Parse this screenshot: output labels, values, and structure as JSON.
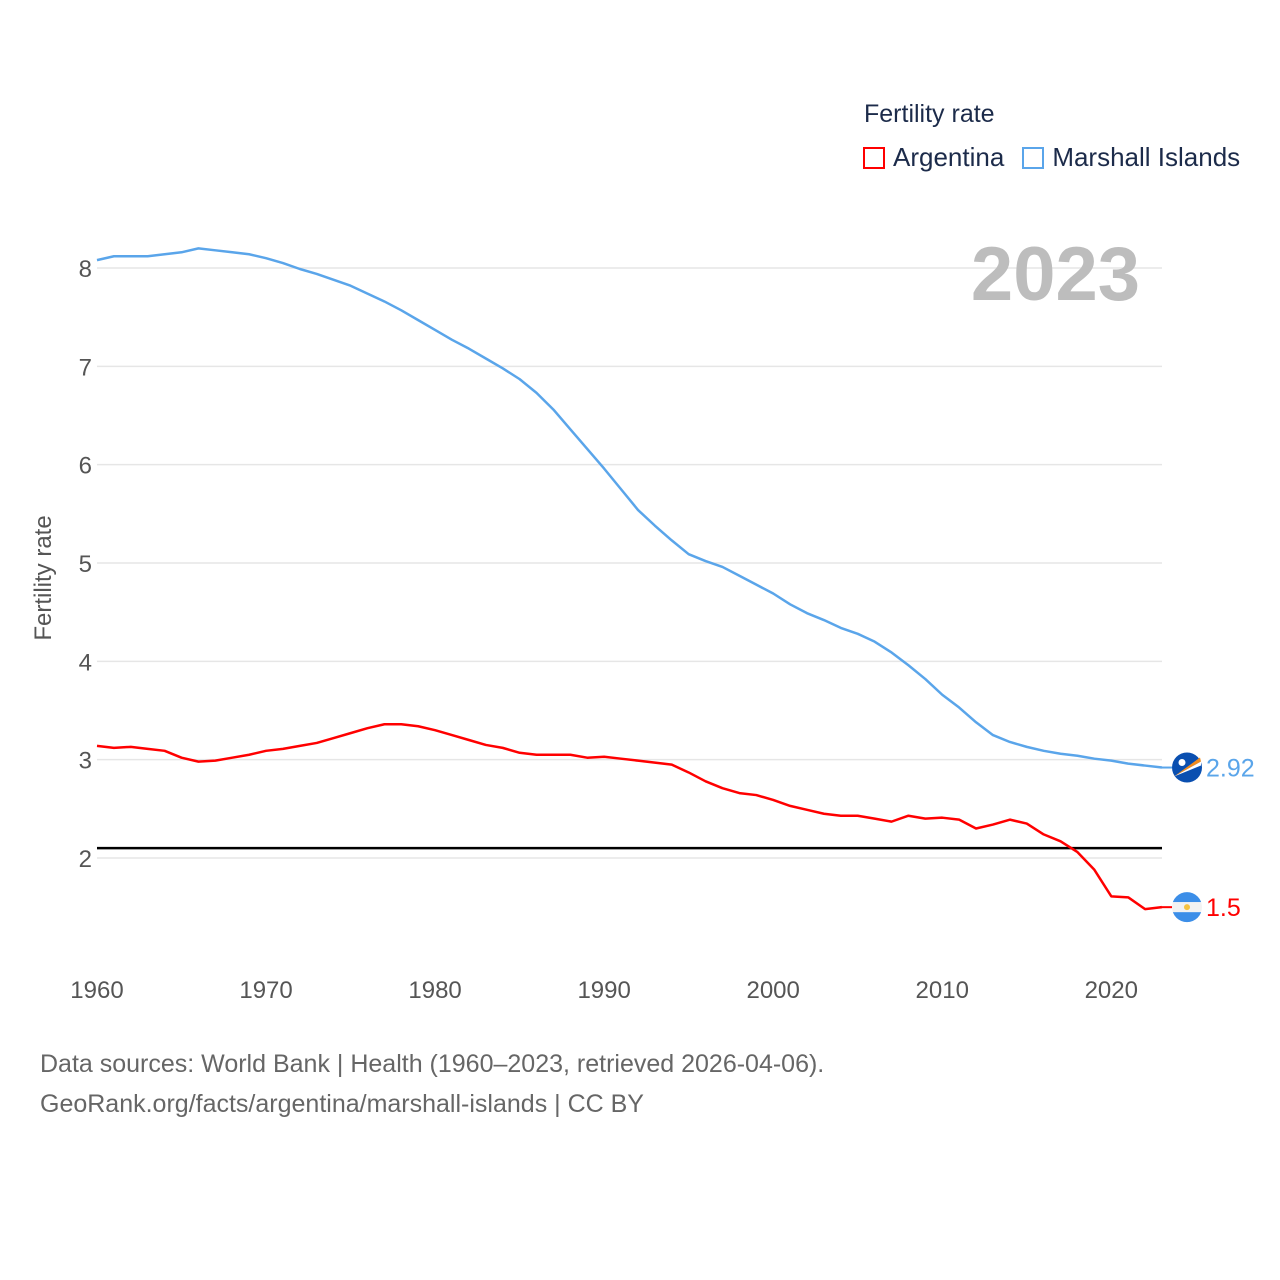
{
  "chart_data": {
    "type": "line",
    "title": "2023",
    "ylabel": "Fertility rate",
    "xlabel": "",
    "xlim": [
      1960,
      2023
    ],
    "ylim": [
      1.0,
      8.28
    ],
    "grid": true,
    "legend_title": "Fertility rate",
    "legend_placement": "top-right",
    "x_ticks": [
      1960,
      1970,
      1980,
      1990,
      2000,
      2010,
      2020
    ],
    "y_ticks": [
      2,
      3,
      4,
      5,
      6,
      7,
      8
    ],
    "reference_line": {
      "value": 2.1,
      "color": "#000000"
    },
    "x": [
      1960,
      1961,
      1962,
      1963,
      1964,
      1965,
      1966,
      1967,
      1968,
      1969,
      1970,
      1971,
      1972,
      1973,
      1974,
      1975,
      1976,
      1977,
      1978,
      1979,
      1980,
      1981,
      1982,
      1983,
      1984,
      1985,
      1986,
      1987,
      1988,
      1989,
      1990,
      1991,
      1992,
      1993,
      1994,
      1995,
      1996,
      1997,
      1998,
      1999,
      2000,
      2001,
      2002,
      2003,
      2004,
      2005,
      2006,
      2007,
      2008,
      2009,
      2010,
      2011,
      2012,
      2013,
      2014,
      2015,
      2016,
      2017,
      2018,
      2019,
      2020,
      2021,
      2022,
      2023
    ],
    "series": [
      {
        "name": "Argentina",
        "color": "#ff0000",
        "end_label": "1.5",
        "values": [
          3.14,
          3.12,
          3.13,
          3.11,
          3.09,
          3.02,
          2.98,
          2.99,
          3.02,
          3.05,
          3.09,
          3.11,
          3.14,
          3.17,
          3.22,
          3.27,
          3.32,
          3.36,
          3.36,
          3.34,
          3.3,
          3.25,
          3.2,
          3.15,
          3.12,
          3.07,
          3.05,
          3.05,
          3.05,
          3.02,
          3.03,
          3.01,
          2.99,
          2.97,
          2.95,
          2.87,
          2.78,
          2.71,
          2.66,
          2.64,
          2.59,
          2.53,
          2.49,
          2.45,
          2.43,
          2.43,
          2.4,
          2.37,
          2.43,
          2.4,
          2.41,
          2.39,
          2.3,
          2.34,
          2.39,
          2.35,
          2.24,
          2.17,
          2.06,
          1.88,
          1.61,
          1.6,
          1.48,
          1.5
        ]
      },
      {
        "name": "Marshall Islands",
        "color": "#5aa5ea",
        "end_label": "2.92",
        "values": [
          8.08,
          8.12,
          8.12,
          8.12,
          8.14,
          8.16,
          8.2,
          8.18,
          8.16,
          8.14,
          8.1,
          8.05,
          7.99,
          7.94,
          7.88,
          7.82,
          7.74,
          7.66,
          7.57,
          7.47,
          7.37,
          7.27,
          7.18,
          7.08,
          6.98,
          6.87,
          6.73,
          6.56,
          6.36,
          6.16,
          5.96,
          5.75,
          5.54,
          5.38,
          5.23,
          5.09,
          5.02,
          4.96,
          4.87,
          4.78,
          4.69,
          4.58,
          4.49,
          4.42,
          4.34,
          4.28,
          4.2,
          4.09,
          3.96,
          3.82,
          3.66,
          3.53,
          3.38,
          3.25,
          3.18,
          3.13,
          3.09,
          3.06,
          3.04,
          3.01,
          2.99,
          2.96,
          2.94,
          2.92
        ]
      }
    ]
  },
  "footer": {
    "line1": "Data sources: World Bank | Health (1960–2023, retrieved 2026-04-06).",
    "line2": "GeoRank.org/facts/argentina/marshall-islands | CC BY"
  }
}
